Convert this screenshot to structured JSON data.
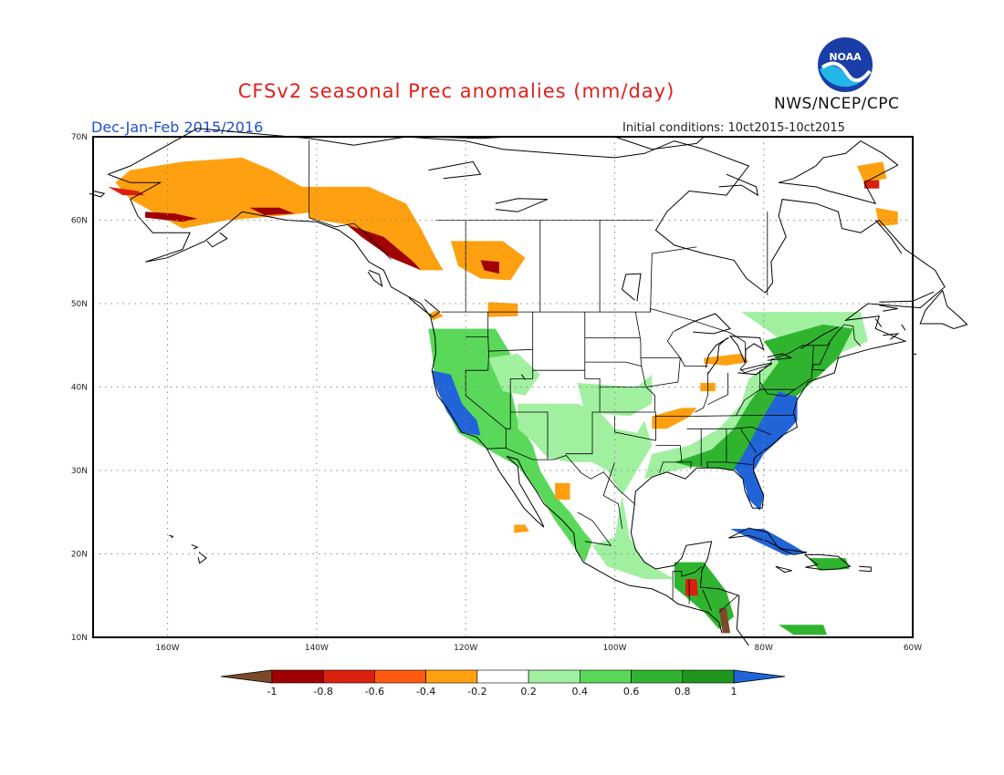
{
  "title": "CFSv2 seasonal Prec anomalies (mm/day)",
  "organization": "NWS/NCEP/CPC",
  "logo_text": "NOAA",
  "season_label": "Dec-Jan-Feb 2015/2016",
  "initial_conditions": "Initial conditions: 10ct2015-10ct2015",
  "map": {
    "lat_labels": [
      "70N",
      "60N",
      "50N",
      "40N",
      "30N",
      "20N",
      "10N"
    ],
    "lon_labels": [
      "160W",
      "140W",
      "120W",
      "100W",
      "80W",
      "60W"
    ],
    "grid": "dotted"
  },
  "colorbar": {
    "tick_labels": [
      "-1",
      "-0.8",
      "-0.6",
      "-0.4",
      "-0.2",
      "0.2",
      "0.4",
      "0.6",
      "0.8",
      "1"
    ],
    "colors": [
      "#7a4a2a",
      "#a00000",
      "#dc2010",
      "#ff5a10",
      "#ffa010",
      "#ffffff",
      "#a0f0a0",
      "#5ad85a",
      "#30b430",
      "#1e961e",
      "#2064d8"
    ]
  },
  "legend_colors": {
    "dry_strong": "#a00000",
    "dry_moderate": "#ff5a10",
    "dry_light": "#ffa010",
    "wet_light": "#a0f0a0",
    "wet_moderate": "#5ad85a",
    "wet_strong": "#1e961e",
    "wet_extreme": "#2064d8"
  }
}
